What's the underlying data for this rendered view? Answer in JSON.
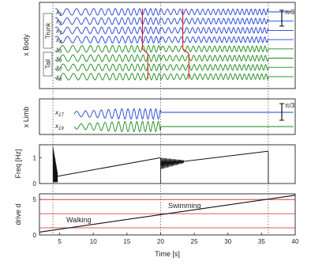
{
  "figure": {
    "xlabel": "Time [s]",
    "x_ticks": [
      5,
      10,
      15,
      20,
      25,
      30,
      35,
      40
    ],
    "x_range": [
      2,
      40
    ],
    "vlines": [
      4,
      20,
      36
    ]
  },
  "colors": {
    "trunk": "#1f3fd6",
    "tail": "#1a8a1a",
    "red": "#d42020",
    "black": "#111111"
  },
  "chart_data": [
    {
      "type": "line",
      "panel": "body",
      "ylabel": "x Body",
      "group_labels": [
        "Trunk",
        "Tail"
      ],
      "scale_label": "π/3",
      "series": [
        {
          "name": "x1",
          "group": "trunk"
        },
        {
          "name": "x2",
          "group": "trunk"
        },
        {
          "name": "x3",
          "group": "trunk"
        },
        {
          "name": "x4",
          "group": "trunk"
        },
        {
          "name": "x5",
          "group": "tail"
        },
        {
          "name": "x6",
          "group": "tail"
        },
        {
          "name": "x7",
          "group": "tail"
        },
        {
          "name": "x8",
          "group": "tail"
        }
      ],
      "oscillation_start": 4,
      "oscillation_stop": 36,
      "red_markers": [
        {
          "t_top": 17.3,
          "t_bottom": 18.1
        },
        {
          "t_top": 23.3,
          "t_bottom": 24.2
        }
      ]
    },
    {
      "type": "line",
      "panel": "limb",
      "ylabel": "x Limb",
      "scale_label": "π/3",
      "series": [
        {
          "name": "x17",
          "color": "trunk"
        },
        {
          "name": "x19",
          "color": "tail"
        }
      ],
      "oscillation_start": 4,
      "oscillation_stop": 20
    },
    {
      "type": "line",
      "panel": "freq",
      "ylabel": "Freq [Hz]",
      "y_ticks": [
        0,
        1
      ],
      "ylim": [
        0,
        1.5
      ],
      "segments": [
        {
          "x": [
            4,
            20
          ],
          "y": [
            0.25,
            1.0
          ]
        },
        {
          "x": [
            20,
            36
          ],
          "y": [
            0.75,
            1.25
          ]
        }
      ],
      "spikes": [
        {
          "t": 4,
          "peak": 1.45
        },
        {
          "t": 20,
          "peak": 1.0
        }
      ]
    },
    {
      "type": "line",
      "panel": "drive",
      "ylabel": "drive d",
      "y_ticks": [
        0,
        5
      ],
      "ylim": [
        0,
        5.8
      ],
      "thresholds": [
        1,
        3,
        5
      ],
      "x": [
        2,
        40
      ],
      "y": [
        0.4,
        5.6
      ],
      "annotations": [
        "Walking",
        "Swimming"
      ]
    }
  ]
}
